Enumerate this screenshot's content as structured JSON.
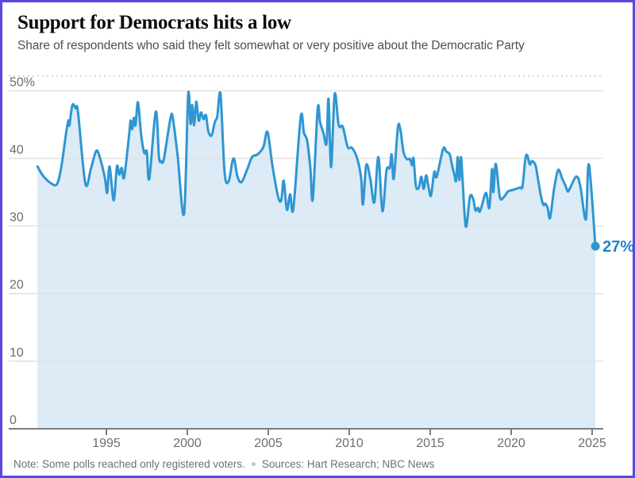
{
  "header": {
    "title": "Support for Democrats hits a low",
    "subtitle": "Share of respondents who said they felt somewhat or very positive about the Democratic Party"
  },
  "footer": {
    "note": "Note: Some polls reached only registered voters.",
    "sources": "Sources: Hart Research; NBC News"
  },
  "chart_data": {
    "type": "line",
    "title": "Support for Democrats hits a low",
    "subtitle": "Share of respondents who said they felt somewhat or very positive about the Democratic Party",
    "series_name": "Somewhat or very positive about the Democratic Party (%)",
    "grid": "horizontal",
    "legend_position": "none",
    "ylim": [
      0,
      52.2
    ],
    "xlim": [
      1990.3,
      2026.2
    ],
    "yticks": [
      0,
      10,
      20,
      30,
      40,
      50
    ],
    "ytick_labels": [
      "0",
      "10",
      "20",
      "30",
      "40",
      "50%"
    ],
    "xticks": [
      1995,
      2000,
      2005,
      2010,
      2015,
      2020,
      2025
    ],
    "xtick_labels": [
      "1995",
      "2000",
      "2005",
      "2010",
      "2015",
      "2020",
      "2025"
    ],
    "end_label": "27%",
    "end_value": 27,
    "colors": {
      "line": "#2f96d2",
      "area": "#dcebf5",
      "end_label": "#1e86c8",
      "grid": "#e1e1e1",
      "axis": "#7d7d7d",
      "plot_top_dotted": "#c9c9c9",
      "frame_border": "#5848e0"
    },
    "x": [
      1990.75,
      1991.1,
      1991.6,
      1991.95,
      1992.2,
      1992.5,
      1992.65,
      1992.72,
      1992.9,
      1993.1,
      1993.25,
      1993.7,
      1994.05,
      1994.35,
      1994.55,
      1994.9,
      1995.05,
      1995.2,
      1995.45,
      1995.65,
      1995.8,
      1995.95,
      1996.1,
      1996.4,
      1996.5,
      1996.6,
      1996.7,
      1996.8,
      1996.95,
      1997.15,
      1997.35,
      1997.5,
      1997.65,
      1998.05,
      1998.25,
      1998.4,
      1998.55,
      1998.95,
      1999.1,
      1999.4,
      1999.8,
      2000.05,
      2000.2,
      2000.3,
      2000.42,
      2000.55,
      2000.7,
      2000.85,
      2001.0,
      2001.15,
      2001.3,
      2001.5,
      2001.7,
      2001.85,
      2002.05,
      2002.3,
      2002.55,
      2002.85,
      2003.1,
      2003.35,
      2003.7,
      2004.0,
      2004.35,
      2004.7,
      2004.95,
      2005.25,
      2005.6,
      2005.8,
      2005.95,
      2006.15,
      2006.35,
      2006.55,
      2007.0,
      2007.2,
      2007.4,
      2007.6,
      2007.75,
      2008.05,
      2008.2,
      2008.4,
      2008.6,
      2008.72,
      2008.88,
      2009.1,
      2009.35,
      2009.6,
      2009.9,
      2010.15,
      2010.4,
      2010.6,
      2010.75,
      2010.85,
      2011.05,
      2011.3,
      2011.55,
      2011.8,
      2012.05,
      2012.3,
      2012.5,
      2012.62,
      2012.75,
      2013.0,
      2013.15,
      2013.35,
      2013.55,
      2013.75,
      2013.88,
      2013.97,
      2014.12,
      2014.3,
      2014.45,
      2014.6,
      2014.75,
      2014.9,
      2015.05,
      2015.25,
      2015.4,
      2015.8,
      2016.0,
      2016.2,
      2016.35,
      2016.5,
      2016.6,
      2016.7,
      2016.8,
      2016.9,
      2017.0,
      2017.2,
      2017.45,
      2017.65,
      2017.8,
      2017.95,
      2018.05,
      2018.2,
      2018.45,
      2018.65,
      2018.82,
      2018.9,
      2019.05,
      2019.3,
      2019.55,
      2019.8,
      2020.05,
      2020.3,
      2020.55,
      2020.7,
      2020.88,
      2021.0,
      2021.15,
      2021.28,
      2021.5,
      2021.65,
      2021.85,
      2022.0,
      2022.1,
      2022.25,
      2022.4,
      2022.65,
      2022.9,
      2023.15,
      2023.35,
      2023.5,
      2023.65,
      2023.85,
      2024.0,
      2024.15,
      2024.3,
      2024.62,
      2024.8,
      2025.2
    ],
    "values": [
      38.8,
      37.4,
      36.3,
      36.2,
      38.5,
      43.5,
      45.6,
      44.9,
      47.9,
      47.4,
      46.8,
      36.3,
      38.5,
      41.0,
      40.5,
      37.2,
      34.9,
      38.8,
      33.8,
      38.8,
      37.6,
      38.6,
      37.2,
      43.4,
      45.6,
      44.3,
      46.0,
      44.9,
      48.3,
      43.4,
      40.8,
      41.0,
      37.0,
      46.9,
      40.2,
      39.6,
      39.9,
      45.8,
      46.0,
      40.4,
      31.8,
      49.4,
      45.1,
      47.9,
      44.9,
      48.4,
      45.6,
      46.8,
      45.8,
      46.4,
      44.0,
      43.4,
      45.4,
      46.2,
      49.5,
      38.0,
      36.6,
      40.0,
      37.3,
      36.5,
      38.4,
      40.2,
      40.6,
      41.7,
      43.9,
      39.0,
      34.4,
      33.8,
      36.7,
      32.4,
      34.7,
      32.6,
      46.1,
      43.8,
      42.6,
      38.6,
      34.0,
      47.3,
      45.3,
      43.8,
      42.2,
      48.8,
      38.7,
      49.5,
      44.9,
      44.7,
      41.7,
      41.6,
      40.6,
      39.0,
      36.7,
      33.2,
      39.0,
      37.0,
      33.5,
      40.2,
      32.2,
      38.2,
      38.6,
      40.6,
      37.0,
      44.5,
      44.3,
      41.0,
      39.9,
      39.9,
      39.0,
      40.0,
      35.9,
      35.7,
      37.3,
      35.5,
      37.5,
      35.7,
      34.5,
      38.0,
      37.3,
      41.4,
      41.0,
      40.6,
      39.0,
      37.5,
      36.7,
      40.2,
      36.8,
      40.2,
      36.8,
      29.9,
      34.3,
      34.0,
      32.3,
      32.7,
      32.1,
      33.1,
      34.9,
      32.7,
      38.4,
      35.0,
      39.2,
      34.3,
      34.3,
      35.1,
      35.3,
      35.5,
      35.7,
      35.9,
      40.0,
      40.4,
      39.1,
      39.6,
      39.0,
      37.0,
      34.3,
      33.1,
      33.3,
      32.7,
      31.2,
      35.5,
      38.3,
      37.0,
      36.0,
      35.1,
      35.7,
      36.7,
      37.3,
      37.0,
      35.5,
      31.0,
      39.1,
      27.0
    ]
  }
}
